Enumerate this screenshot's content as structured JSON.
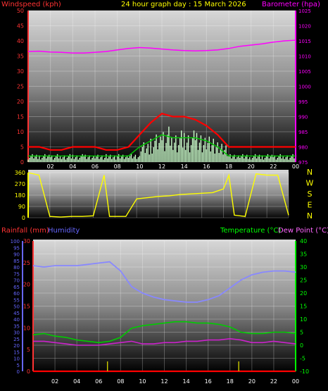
{
  "header": {
    "wind_label": "Windspeed (kph)",
    "title": "24 hour graph day : 15 March 2026",
    "baro_label": "Barometer (hpa)",
    "rain_label": "Rainfall (mm)",
    "hum_label": "Humidity",
    "temp_label": "Temperature (°C)",
    "dew_label": "Dew Point (°C)"
  },
  "colors": {
    "wind": "#ff0000",
    "gust": "#ff0000",
    "avg_wind": "#00cc00",
    "wind_bars": "#ccffcc",
    "baro": "#ff00ff",
    "direction": "#ffff00",
    "humidity": "#8888ff",
    "temperature": "#00cc00",
    "dewpoint": "#cc22cc",
    "rain": "#ff0000",
    "rain_tick": "#cccc00",
    "axis_left_wind": "#ff3333",
    "axis_right_baro": "#ff00ff",
    "axis_humidity": "#6666ff",
    "axis_temp": "#00ff00",
    "axis_rain": "#ff3333"
  },
  "chart_data": [
    {
      "type": "line",
      "name": "wind-barometer",
      "x_ticks": [
        "02",
        "04",
        "06",
        "08",
        "10",
        "12",
        "14",
        "16",
        "18",
        "20",
        "22",
        "00"
      ],
      "ylim_left": [
        0,
        50
      ],
      "ylim_right": [
        975,
        1025
      ],
      "yticks_left": [
        0,
        5,
        10,
        15,
        20,
        25,
        30,
        35,
        40,
        45,
        50
      ],
      "yticks_right": [
        975,
        980,
        985,
        990,
        995,
        1000,
        1005,
        1010,
        1015,
        1020,
        1025
      ],
      "series": [
        {
          "axis": "right",
          "x": [
            0,
            1,
            2,
            3,
            4,
            5,
            6,
            7,
            8,
            9,
            10,
            11,
            12,
            13,
            14,
            15,
            16,
            17,
            18,
            19,
            20,
            21,
            22,
            23,
            24
          ],
          "values": [
            1011.5,
            1011.6,
            1011.3,
            1011.2,
            1011.0,
            1011.0,
            1011.2,
            1011.5,
            1012.0,
            1012.5,
            1012.8,
            1012.6,
            1012.3,
            1012.0,
            1011.8,
            1011.7,
            1011.8,
            1012.0,
            1012.5,
            1013.2,
            1013.6,
            1014.0,
            1014.6,
            1015.0,
            1015.2
          ]
        },
        {
          "axis": "left",
          "x": [
            0,
            1,
            2,
            3,
            4,
            5,
            6,
            7,
            8,
            9,
            10,
            11,
            12,
            13,
            14,
            15,
            16,
            17,
            18,
            19,
            20,
            21,
            22,
            23,
            24
          ],
          "values": [
            5,
            5,
            4,
            4,
            5,
            5,
            5,
            4,
            4,
            5,
            9,
            13,
            16,
            15,
            15,
            14,
            12,
            9,
            5,
            5,
            5,
            5,
            5,
            5,
            5
          ]
        },
        {
          "axis": "left",
          "x": [
            0,
            1,
            2,
            3,
            4,
            5,
            6,
            7,
            8,
            9,
            10,
            11,
            12,
            13,
            14,
            15,
            16,
            17,
            18,
            19,
            20,
            21,
            22,
            23,
            24
          ],
          "values": [
            2,
            2,
            2,
            2,
            2,
            2,
            2,
            2,
            2,
            2,
            5,
            7,
            9,
            8,
            8,
            8,
            7,
            5,
            2,
            2,
            2,
            2,
            2,
            2,
            2
          ]
        }
      ]
    },
    {
      "type": "line",
      "name": "wind-direction",
      "x_ticks": [
        "02",
        "04",
        "06",
        "08",
        "10",
        "12",
        "14",
        "16",
        "18",
        "20",
        "22",
        "00"
      ],
      "ylim": [
        0,
        360
      ],
      "yticks": [
        0,
        90,
        180,
        270,
        360
      ],
      "right_labels": [
        "N",
        "W",
        "S",
        "E",
        "N"
      ],
      "series": [
        {
          "x": [
            0,
            1,
            2,
            3,
            4,
            5,
            6,
            7,
            7.5,
            8,
            9,
            10,
            11,
            12,
            13,
            14,
            15,
            16,
            17,
            18,
            18.5,
            19,
            20,
            21,
            22,
            23,
            24
          ],
          "values": [
            360,
            340,
            10,
            5,
            10,
            10,
            15,
            340,
            10,
            10,
            10,
            150,
            160,
            170,
            175,
            185,
            190,
            195,
            200,
            230,
            340,
            20,
            10,
            350,
            340,
            340,
            20
          ]
        }
      ]
    },
    {
      "type": "line",
      "name": "rain-humidity-temperature",
      "x_ticks": [
        "02",
        "04",
        "06",
        "08",
        "10",
        "12",
        "14",
        "16",
        "18",
        "20",
        "22",
        "00"
      ],
      "ylim_humidity": [
        0,
        100
      ],
      "yticks_humidity": [
        0,
        5,
        10,
        15,
        20,
        25,
        30,
        35,
        40,
        45,
        50,
        55,
        60,
        65,
        70,
        75,
        80,
        85,
        90,
        95,
        100
      ],
      "ylim_rain": [
        0,
        30
      ],
      "yticks_rain": [
        0,
        5,
        10,
        15,
        20,
        25,
        30
      ],
      "ylim_temp": [
        -10,
        40
      ],
      "yticks_temp": [
        -10,
        -5,
        0,
        5,
        10,
        15,
        20,
        25,
        30,
        35,
        40
      ],
      "series": [
        {
          "x": [
            0,
            1,
            2,
            3,
            4,
            5,
            6,
            7,
            8,
            9,
            10,
            11,
            12,
            13,
            14,
            15,
            16,
            17,
            18,
            19,
            20,
            21,
            22,
            23,
            24
          ],
          "values": [
            81,
            80,
            81,
            81,
            81,
            82,
            83,
            84,
            77,
            65,
            60,
            57,
            55,
            54,
            53,
            53,
            55,
            58,
            64,
            70,
            74,
            76,
            77,
            77,
            76
          ]
        },
        {
          "x": [
            0,
            1,
            2,
            3,
            4,
            5,
            6,
            7,
            8,
            9,
            10,
            11,
            12,
            13,
            14,
            15,
            16,
            17,
            18,
            19,
            20,
            21,
            22,
            23,
            24
          ],
          "values": [
            4,
            4.5,
            3.5,
            3,
            2,
            1.5,
            1,
            1.5,
            3,
            6.5,
            7.5,
            8,
            8.5,
            9,
            9,
            8.5,
            8.5,
            8,
            7,
            5,
            4.5,
            4.5,
            5,
            5,
            4.5
          ]
        },
        {
          "x": [
            0,
            1,
            2,
            3,
            4,
            5,
            6,
            7,
            8,
            9,
            10,
            11,
            12,
            13,
            14,
            15,
            16,
            17,
            18,
            19,
            20,
            21,
            22,
            23,
            24
          ],
          "values": [
            1.5,
            1.5,
            1,
            0.5,
            0,
            0,
            0,
            0.5,
            1,
            1.5,
            0.5,
            0.5,
            1,
            1,
            1.5,
            1.5,
            2,
            2,
            2.5,
            2,
            1,
            1,
            1.5,
            1,
            0.5
          ]
        },
        {
          "x": [
            0,
            24
          ],
          "values": [
            0,
            0
          ]
        }
      ],
      "rain_ticks_x": [
        6.8,
        18.8
      ]
    }
  ]
}
